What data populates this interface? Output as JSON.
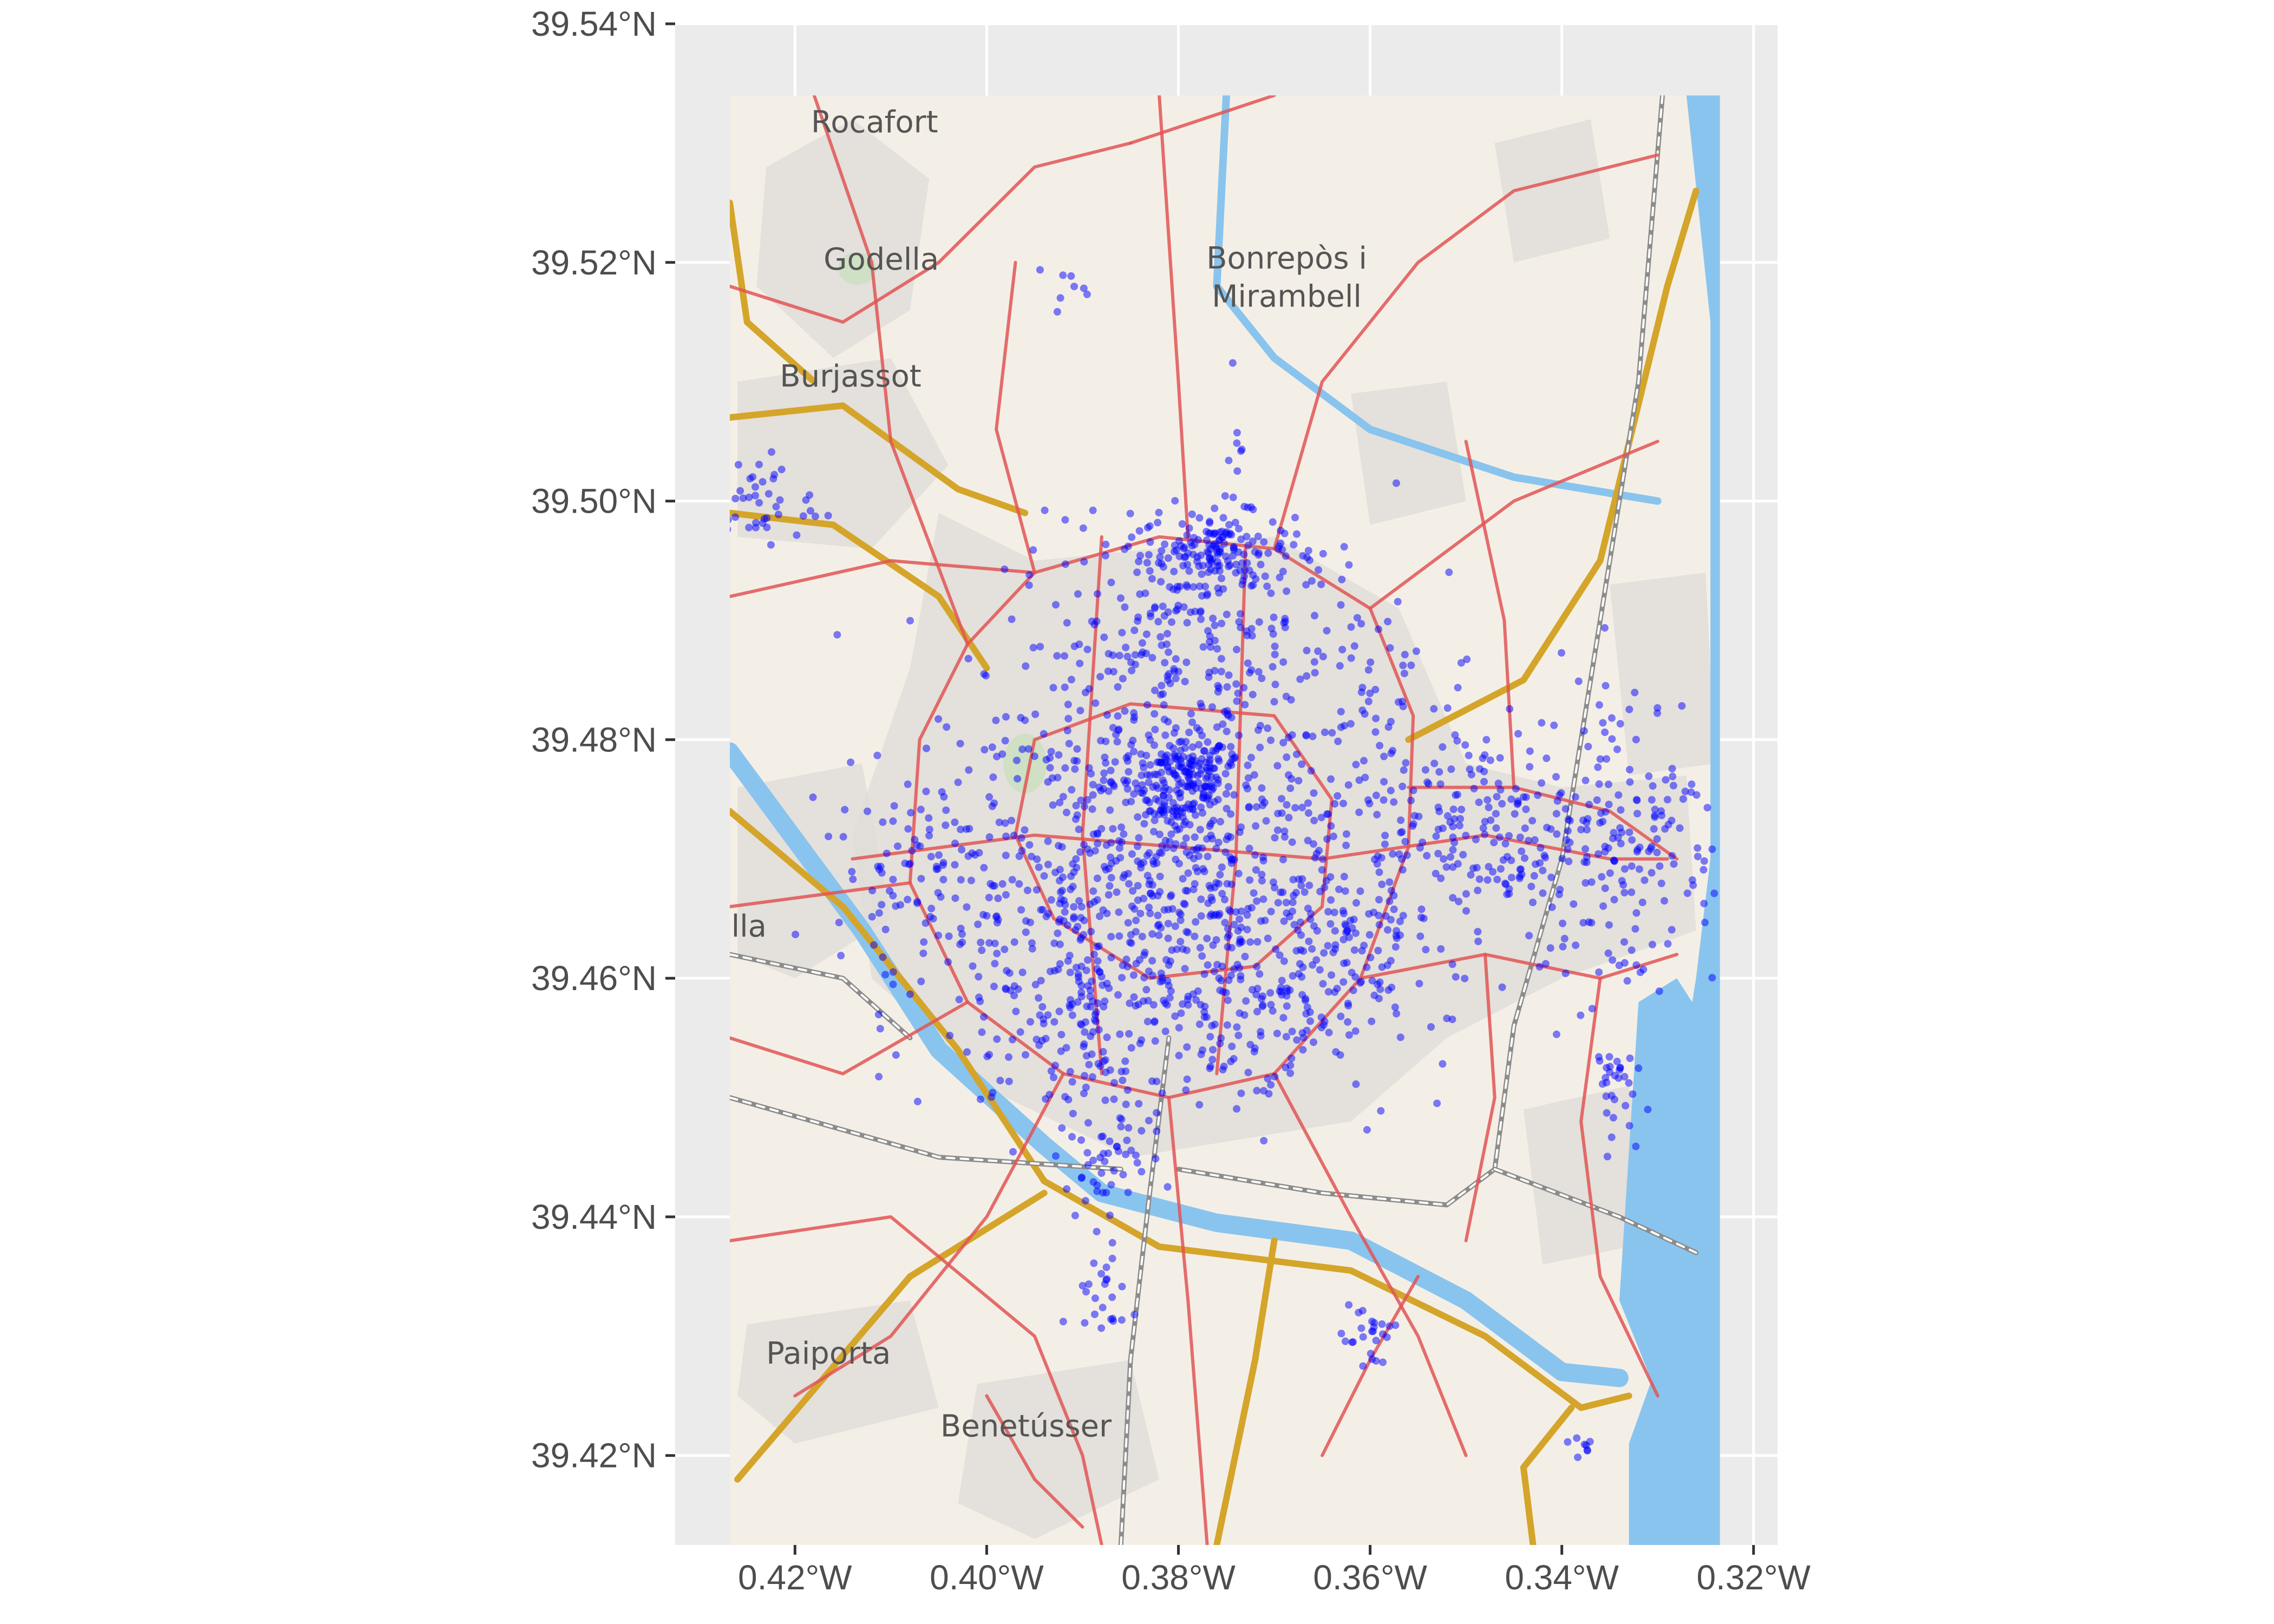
{
  "colors": {
    "panel_background": "#ebebeb",
    "gridline": "#ffffff",
    "map_land": "#f4efe6",
    "urban": "#e0ddd8",
    "water": "#89c4ee",
    "primary_road": "#e05555",
    "motorway": "#d4a52a",
    "railway": "#8c8c8c",
    "park": "#cfe0c4",
    "points": "#0000ff",
    "tick_text": "#4d4d4d",
    "place_text": "#555555"
  },
  "place_labels": [
    {
      "name": "Rocafort",
      "lon": -0.4117,
      "lat": 39.5309
    },
    {
      "name": "Godella",
      "lon": -0.411,
      "lat": 39.5194
    },
    {
      "name": "Bonrepòs i",
      "lon": -0.3687,
      "lat": 39.5195
    },
    {
      "name": "Mirambell",
      "lon": -0.3687,
      "lat": 39.5163
    },
    {
      "name": "Burjassot",
      "lon": -0.4142,
      "lat": 39.5096
    },
    {
      "name": "rivella",
      "lon": -0.4278,
      "lat": 39.4635
    },
    {
      "name": "Paiporta",
      "lon": -0.4165,
      "lat": 39.4277
    },
    {
      "name": "Benetússer",
      "lon": -0.3959,
      "lat": 39.4216
    }
  ],
  "chart_data": {
    "type": "scatter",
    "title": "",
    "xlabel": "",
    "ylabel": "",
    "xlim": [
      -0.4325,
      -0.3175
    ],
    "ylim": [
      39.4125,
      39.54
    ],
    "x_ticks": [
      -0.42,
      -0.4,
      -0.38,
      -0.36,
      -0.34,
      -0.32
    ],
    "x_tick_labels": [
      "0.42°W",
      "0.40°W",
      "0.38°W",
      "0.36°W",
      "0.34°W",
      "0.32°W"
    ],
    "y_ticks": [
      39.42,
      39.44,
      39.46,
      39.48,
      39.5,
      39.52,
      39.54
    ],
    "y_tick_labels": [
      "39.42°N",
      "39.44°N",
      "39.46°N",
      "39.48°N",
      "39.50°N",
      "39.52°N",
      "39.54°N"
    ],
    "map_extent": {
      "lon": [
        -0.4268,
        -0.3235
      ],
      "lat": [
        39.4125,
        39.534
      ]
    },
    "point_color": "#0000ff",
    "point_alpha": 0.5,
    "grid": true,
    "clusters": [
      {
        "lon": -0.3795,
        "lat": 39.4765,
        "spread": [
          0.0025,
          0.002
        ],
        "n": 160
      },
      {
        "lon": -0.376,
        "lat": 39.496,
        "spread": [
          0.004,
          0.0015
        ],
        "n": 140
      },
      {
        "lon": -0.38,
        "lat": 39.47,
        "spread": [
          0.012,
          0.008
        ],
        "n": 650
      },
      {
        "lon": -0.378,
        "lat": 39.488,
        "spread": [
          0.01,
          0.005
        ],
        "n": 260
      },
      {
        "lon": -0.39,
        "lat": 39.46,
        "spread": [
          0.008,
          0.007
        ],
        "n": 220
      },
      {
        "lon": -0.372,
        "lat": 39.458,
        "spread": [
          0.007,
          0.005
        ],
        "n": 160
      },
      {
        "lon": -0.348,
        "lat": 39.472,
        "spread": [
          0.006,
          0.005
        ],
        "n": 190
      },
      {
        "lon": -0.333,
        "lat": 39.472,
        "spread": [
          0.005,
          0.007
        ],
        "n": 170
      },
      {
        "lon": -0.406,
        "lat": 39.469,
        "spread": [
          0.005,
          0.004
        ],
        "n": 90
      },
      {
        "lon": -0.424,
        "lat": 39.5,
        "spread": [
          0.003,
          0.002
        ],
        "n": 45
      },
      {
        "lon": -0.388,
        "lat": 39.447,
        "spread": [
          0.002,
          0.005
        ],
        "n": 70
      },
      {
        "lon": -0.36,
        "lat": 39.43,
        "spread": [
          0.0015,
          0.002
        ],
        "n": 25
      },
      {
        "lon": -0.335,
        "lat": 39.451,
        "spread": [
          0.0012,
          0.002
        ],
        "n": 30
      },
      {
        "lon": -0.388,
        "lat": 39.433,
        "spread": [
          0.002,
          0.002
        ],
        "n": 20
      },
      {
        "lon": -0.338,
        "lat": 39.421,
        "spread": [
          0.001,
          0.0005
        ],
        "n": 8
      },
      {
        "lon": -0.374,
        "lat": 39.501,
        "spread": [
          0.0005,
          0.005
        ],
        "n": 15
      },
      {
        "lon": -0.391,
        "lat": 39.518,
        "spread": [
          0.002,
          0.001
        ],
        "n": 8
      },
      {
        "lon": -0.358,
        "lat": 39.48,
        "spread": [
          0.002,
          0.006
        ],
        "n": 25
      },
      {
        "lon": -0.362,
        "lat": 39.462,
        "spread": [
          0.003,
          0.003
        ],
        "n": 40
      }
    ]
  }
}
